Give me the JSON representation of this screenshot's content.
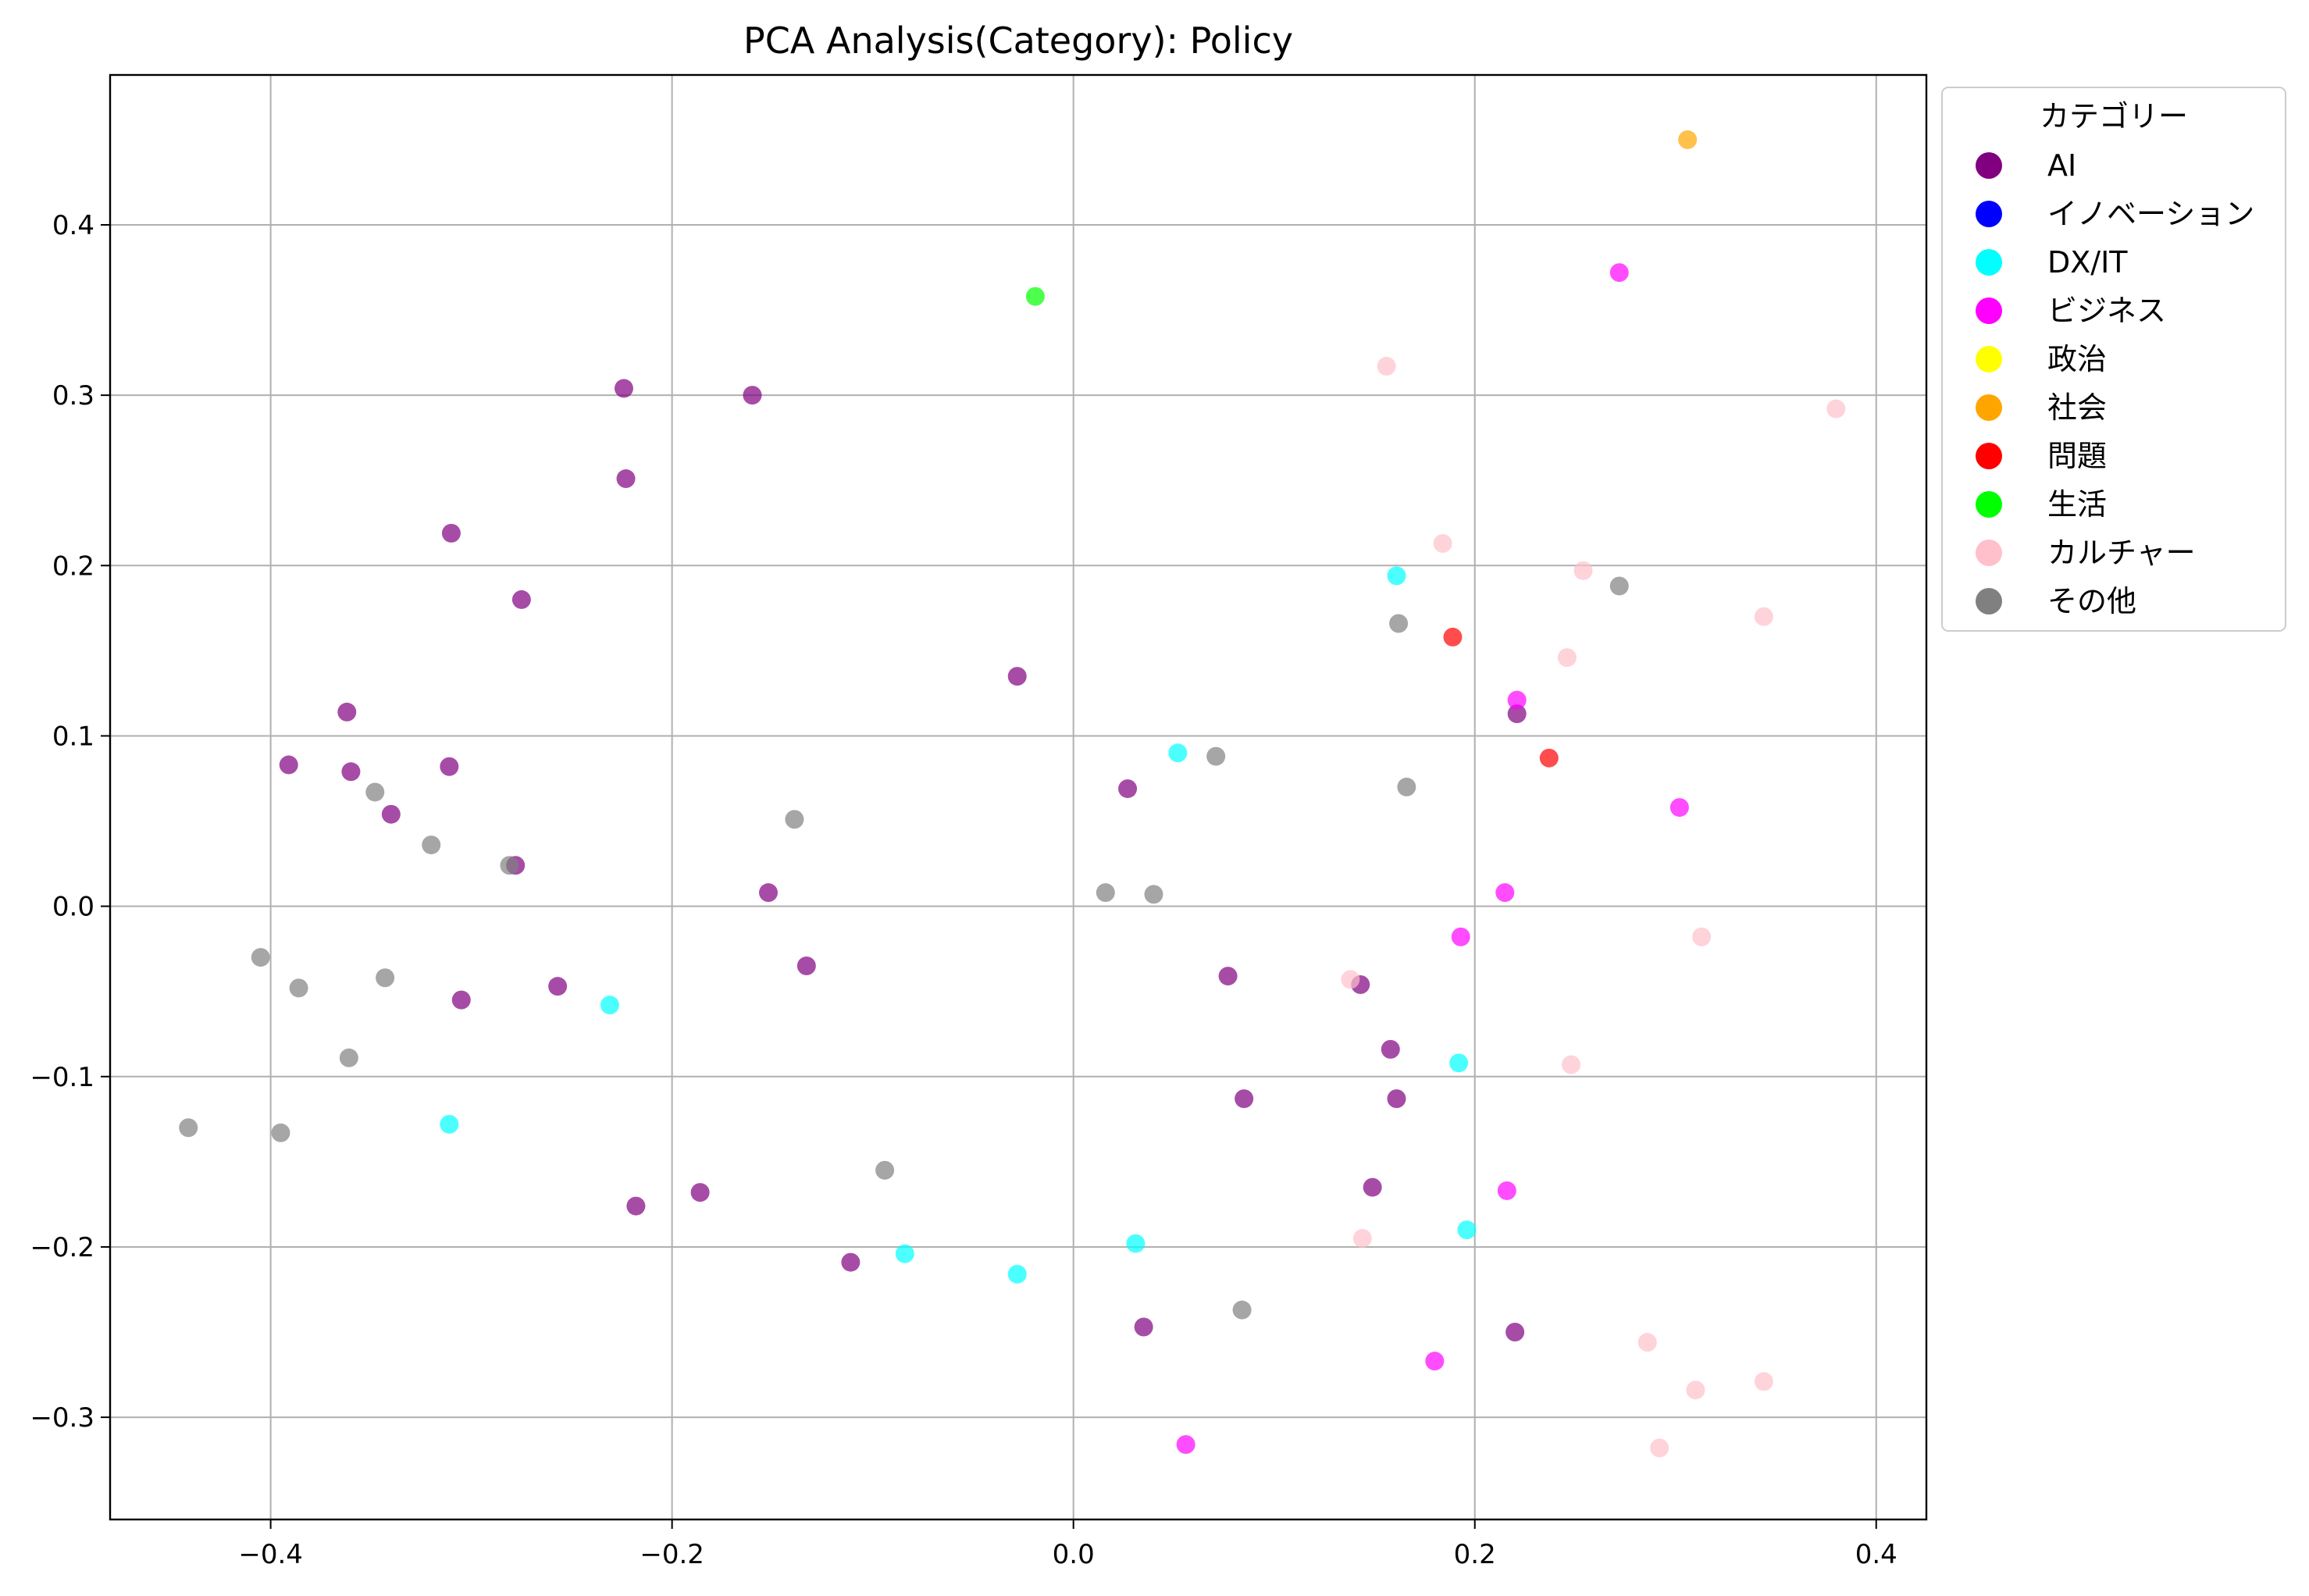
{
  "chart_data": {
    "type": "scatter",
    "title": "PCA Analysis(Category): Policy",
    "xlabel": "",
    "ylabel": "",
    "xlim": [
      -0.48,
      0.425
    ],
    "ylim": [
      -0.36,
      0.488
    ],
    "xticks": [
      -0.4,
      -0.2,
      0.0,
      0.2,
      0.4
    ],
    "xtick_labels": [
      "−0.4",
      "−0.2",
      "0.0",
      "0.2",
      "0.4"
    ],
    "yticks": [
      -0.3,
      -0.2,
      -0.1,
      0.0,
      0.1,
      0.2,
      0.3,
      0.4
    ],
    "ytick_labels": [
      "−0.3",
      "−0.2",
      "−0.1",
      "0.0",
      "0.1",
      "0.2",
      "0.3",
      "0.4"
    ],
    "grid": true,
    "legend": {
      "title": "カテゴリー",
      "placement": "outside-top-right"
    },
    "series": [
      {
        "name": "AI",
        "color": "#800080",
        "points": [
          [
            -0.224,
            0.304
          ],
          [
            -0.16,
            0.3
          ],
          [
            -0.223,
            0.251
          ],
          [
            -0.31,
            0.219
          ],
          [
            -0.275,
            0.18
          ],
          [
            -0.362,
            0.114
          ],
          [
            -0.391,
            0.083
          ],
          [
            -0.36,
            0.079
          ],
          [
            -0.311,
            0.082
          ],
          [
            -0.34,
            0.054
          ],
          [
            -0.278,
            0.024
          ],
          [
            -0.152,
            0.008
          ],
          [
            -0.133,
            -0.035
          ],
          [
            -0.257,
            -0.047
          ],
          [
            -0.305,
            -0.055
          ],
          [
            -0.218,
            -0.176
          ],
          [
            -0.186,
            -0.168
          ],
          [
            -0.111,
            -0.209
          ],
          [
            -0.028,
            0.135
          ],
          [
            0.027,
            0.069
          ],
          [
            0.077,
            -0.041
          ],
          [
            0.085,
            -0.113
          ],
          [
            0.035,
            -0.247
          ],
          [
            0.143,
            -0.046
          ],
          [
            0.158,
            -0.084
          ],
          [
            0.161,
            -0.113
          ],
          [
            0.149,
            -0.165
          ],
          [
            0.221,
            0.113
          ],
          [
            0.22,
            -0.25
          ]
        ]
      },
      {
        "name": "イノベーション",
        "color": "#0000ff",
        "points": []
      },
      {
        "name": "DX/IT",
        "color": "#00ffff",
        "points": [
          [
            -0.231,
            -0.058
          ],
          [
            -0.311,
            -0.128
          ],
          [
            -0.084,
            -0.204
          ],
          [
            -0.028,
            -0.216
          ],
          [
            0.031,
            -0.198
          ],
          [
            0.052,
            0.09
          ],
          [
            0.161,
            0.194
          ],
          [
            0.192,
            -0.092
          ],
          [
            0.196,
            -0.19
          ]
        ]
      },
      {
        "name": "ビジネス",
        "color": "#ff00ff",
        "points": [
          [
            0.272,
            0.372
          ],
          [
            0.221,
            0.121
          ],
          [
            0.302,
            0.058
          ],
          [
            0.215,
            0.008
          ],
          [
            0.193,
            -0.018
          ],
          [
            0.216,
            -0.167
          ],
          [
            0.18,
            -0.267
          ],
          [
            0.056,
            -0.316
          ]
        ]
      },
      {
        "name": "政治",
        "color": "#ffff00",
        "points": []
      },
      {
        "name": "社会",
        "color": "#ffa500",
        "points": [
          [
            0.306,
            0.45
          ]
        ]
      },
      {
        "name": "問題",
        "color": "#ff0000",
        "points": [
          [
            0.189,
            0.158
          ],
          [
            0.237,
            0.087
          ]
        ]
      },
      {
        "name": "生活",
        "color": "#00ff00",
        "points": [
          [
            -0.019,
            0.358
          ]
        ]
      },
      {
        "name": "カルチャー",
        "color": "#ffc0cb",
        "points": [
          [
            0.156,
            0.317
          ],
          [
            0.38,
            0.292
          ],
          [
            0.184,
            0.213
          ],
          [
            0.254,
            0.197
          ],
          [
            0.344,
            0.17
          ],
          [
            0.246,
            0.146
          ],
          [
            0.313,
            -0.018
          ],
          [
            0.138,
            -0.043
          ],
          [
            0.248,
            -0.093
          ],
          [
            0.144,
            -0.195
          ],
          [
            0.286,
            -0.256
          ],
          [
            0.31,
            -0.284
          ],
          [
            0.344,
            -0.279
          ],
          [
            0.292,
            -0.318
          ]
        ]
      },
      {
        "name": "その他",
        "color": "#808080",
        "points": [
          [
            -0.348,
            0.067
          ],
          [
            -0.32,
            0.036
          ],
          [
            -0.281,
            0.024
          ],
          [
            -0.139,
            0.051
          ],
          [
            -0.405,
            -0.03
          ],
          [
            -0.386,
            -0.048
          ],
          [
            -0.343,
            -0.042
          ],
          [
            -0.361,
            -0.089
          ],
          [
            -0.441,
            -0.13
          ],
          [
            -0.395,
            -0.133
          ],
          [
            -0.094,
            -0.155
          ],
          [
            0.016,
            0.008
          ],
          [
            0.04,
            0.007
          ],
          [
            0.071,
            0.088
          ],
          [
            0.162,
            0.166
          ],
          [
            0.166,
            0.07
          ],
          [
            0.272,
            0.188
          ],
          [
            0.084,
            -0.237
          ]
        ]
      }
    ]
  }
}
